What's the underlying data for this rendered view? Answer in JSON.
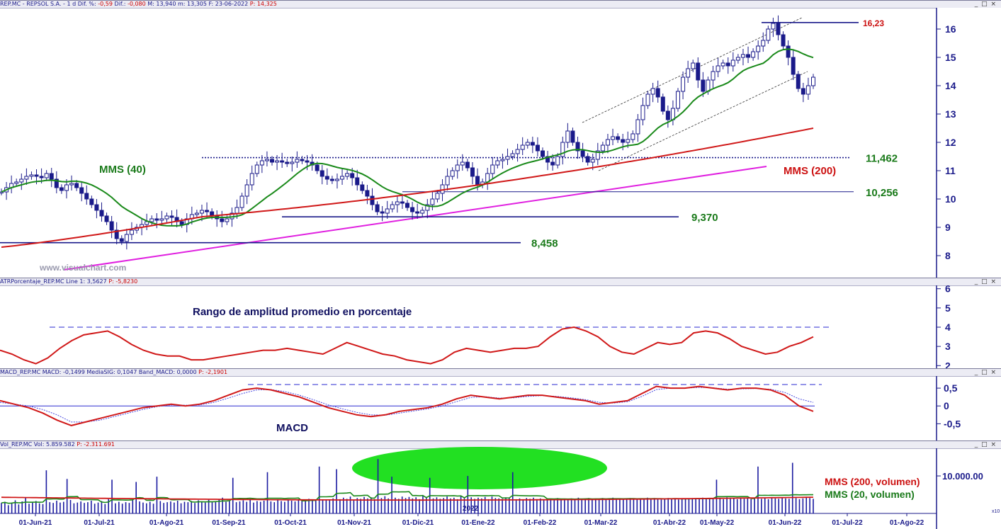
{
  "panels": {
    "price_header": {
      "prefix": "REP.MC - REPSOL  S.A. - 1 d  Dif. %: ",
      "dif_pct": "-0,59",
      "mid1": "  Dif.: ",
      "dif": "-0,080",
      "mid2": "  M: 13,940  m: 13,305  F: 23-06-2022  ",
      "p": "P: 14,325"
    },
    "atr_header": {
      "prefix": "ATRPorcentaje_REP.MC  Line 1: 3,5627  ",
      "p": "P: -5,8230"
    },
    "macd_header": {
      "prefix": "MACD_REP.MC  MACD: -0,1499  MediaSIG: 0,1047  Band_MACD: 0,0000  ",
      "p": "P: -2,1901"
    },
    "vol_header": {
      "prefix": "Vol_REP.MC  Vol: 5.859.582  ",
      "p": "P: -2.311.691"
    },
    "window_buttons": "_ □ ×"
  },
  "annotations": {
    "mms40": "MMS (40)",
    "mms200": "MMS (200)",
    "atr_title": "Rango de amplitud promedio en porcentaje",
    "macd_title": "MACD",
    "vol_mms200": "MMS (200, volumen)",
    "vol_mms20": "MMS (20, volumen)",
    "watermark": "www.visualchart.com",
    "year_label": "2022",
    "vol_axis_corner": "x10"
  },
  "chart_data": [
    {
      "type": "candlestick",
      "name_note": "price",
      "x_ticks": [
        "01-Jun-21",
        "01-Jul-21",
        "01-Ago-21",
        "01-Sep-21",
        "01-Oct-21",
        "01-Nov-21",
        "01-Dic-21",
        "01-Ene-22",
        "01-Feb-22",
        "01-Mar-22",
        "01-Abr-22",
        "01-May-22",
        "01-Jun-22",
        "01-Jul-22",
        "01-Ago-22"
      ],
      "ylim": [
        7.3,
        16.7
      ],
      "y_ticks": [
        8,
        9,
        10,
        11,
        12,
        13,
        14,
        15,
        16
      ],
      "levels": [
        {
          "value": 16.23,
          "label": "16,23",
          "color": "#cc1111"
        },
        {
          "value": 11.462,
          "label": "11,462",
          "color": "#1a7a1a"
        },
        {
          "value": 10.256,
          "label": "10,256",
          "color": "#1a7a1a"
        },
        {
          "value": 9.37,
          "label": "9,370",
          "color": "#1a7a1a"
        },
        {
          "value": 8.458,
          "label": "8,458",
          "color": "#1a7a1a"
        }
      ],
      "closes": [
        10.25,
        10.4,
        10.55,
        10.6,
        10.7,
        10.8,
        10.85,
        10.8,
        10.75,
        10.9,
        10.7,
        10.4,
        10.3,
        10.5,
        10.55,
        10.4,
        10.2,
        10.0,
        9.8,
        9.6,
        9.4,
        9.2,
        8.9,
        8.6,
        8.5,
        8.75,
        8.9,
        9.0,
        9.1,
        9.2,
        9.3,
        9.25,
        9.3,
        9.4,
        9.35,
        9.2,
        9.1,
        9.3,
        9.45,
        9.5,
        9.6,
        9.55,
        9.4,
        9.3,
        9.2,
        9.3,
        9.5,
        9.7,
        10.1,
        10.5,
        10.9,
        11.2,
        11.35,
        11.4,
        11.3,
        11.35,
        11.3,
        11.25,
        11.3,
        11.4,
        11.35,
        11.3,
        11.2,
        11.0,
        10.8,
        10.7,
        10.65,
        10.7,
        10.8,
        10.9,
        10.75,
        10.5,
        10.3,
        10.1,
        9.8,
        9.55,
        9.5,
        9.65,
        9.8,
        9.9,
        9.85,
        9.7,
        9.55,
        9.5,
        9.6,
        9.8,
        10.0,
        10.2,
        10.5,
        10.8,
        11.0,
        11.2,
        11.3,
        11.1,
        10.8,
        10.5,
        10.6,
        10.9,
        11.2,
        11.35,
        11.4,
        11.5,
        11.6,
        11.75,
        11.9,
        12.0,
        11.9,
        11.7,
        11.5,
        11.3,
        11.2,
        11.5,
        12.0,
        12.4,
        12.0,
        11.7,
        11.5,
        11.3,
        11.4,
        11.7,
        11.9,
        12.1,
        12.2,
        12.1,
        12.0,
        12.1,
        12.3,
        12.8,
        13.3,
        13.7,
        13.9,
        13.6,
        13.1,
        12.8,
        13.2,
        13.8,
        14.3,
        14.6,
        14.8,
        14.2,
        13.8,
        14.2,
        14.5,
        14.7,
        14.8,
        14.7,
        14.9,
        15.0,
        15.1,
        15.0,
        15.2,
        15.4,
        15.6,
        16.0,
        16.2,
        15.8,
        15.4,
        15.0,
        14.4,
        13.9,
        13.7,
        14.0,
        14.3
      ]
    },
    {
      "type": "line",
      "name_note": "atr_pct",
      "ylim": [
        1.9,
        6.1
      ],
      "y_ticks": [
        2,
        3,
        4,
        5,
        6
      ],
      "reference": 4.0,
      "values": [
        2.8,
        2.6,
        2.3,
        2.1,
        2.4,
        2.9,
        3.3,
        3.6,
        3.7,
        3.8,
        3.5,
        3.1,
        2.8,
        2.6,
        2.5,
        2.5,
        2.3,
        2.3,
        2.4,
        2.5,
        2.6,
        2.7,
        2.8,
        2.8,
        2.9,
        2.8,
        2.7,
        2.6,
        2.9,
        3.2,
        3.0,
        2.8,
        2.6,
        2.5,
        2.3,
        2.2,
        2.1,
        2.3,
        2.7,
        2.9,
        2.8,
        2.7,
        2.8,
        2.9,
        2.9,
        3.0,
        3.5,
        3.9,
        4.0,
        3.8,
        3.5,
        3.0,
        2.7,
        2.6,
        2.9,
        3.2,
        3.1,
        3.2,
        3.7,
        3.8,
        3.7,
        3.4,
        3.0,
        2.8,
        2.6,
        2.7,
        3.0,
        3.2,
        3.5
      ]
    },
    {
      "type": "line",
      "name_note": "macd",
      "ylim": [
        -0.95,
        0.8
      ],
      "y_ticks": [
        -0.5,
        0,
        0.5
      ],
      "y_tick_labels": [
        "-0,5",
        "0",
        "0,5"
      ],
      "reference": 0.6,
      "macd": [
        0.15,
        0.05,
        -0.05,
        -0.2,
        -0.4,
        -0.55,
        -0.45,
        -0.35,
        -0.25,
        -0.15,
        -0.05,
        0.0,
        0.05,
        0.0,
        0.05,
        0.15,
        0.3,
        0.45,
        0.5,
        0.45,
        0.35,
        0.25,
        0.1,
        -0.05,
        -0.15,
        -0.25,
        -0.3,
        -0.25,
        -0.15,
        -0.1,
        -0.05,
        0.05,
        0.2,
        0.3,
        0.25,
        0.2,
        0.25,
        0.3,
        0.3,
        0.25,
        0.2,
        0.15,
        0.05,
        0.1,
        0.15,
        0.35,
        0.55,
        0.5,
        0.5,
        0.55,
        0.5,
        0.45,
        0.5,
        0.5,
        0.45,
        0.3,
        0.0,
        -0.15
      ],
      "signal": [
        0.1,
        0.05,
        0.0,
        -0.1,
        -0.25,
        -0.45,
        -0.45,
        -0.4,
        -0.3,
        -0.2,
        -0.1,
        -0.02,
        0.03,
        0.02,
        0.03,
        0.1,
        0.22,
        0.35,
        0.45,
        0.46,
        0.4,
        0.3,
        0.17,
        0.03,
        -0.08,
        -0.18,
        -0.25,
        -0.26,
        -0.2,
        -0.14,
        -0.08,
        0.0,
        0.12,
        0.24,
        0.26,
        0.22,
        0.23,
        0.27,
        0.29,
        0.27,
        0.23,
        0.18,
        0.1,
        0.08,
        0.12,
        0.27,
        0.46,
        0.5,
        0.5,
        0.52,
        0.51,
        0.47,
        0.48,
        0.49,
        0.47,
        0.38,
        0.2,
        0.1
      ]
    },
    {
      "type": "bar",
      "name_note": "volume",
      "y_ticks": [
        10000000
      ],
      "y_tick_labels": [
        "10.000.00"
      ],
      "ylim": [
        0,
        17000000
      ],
      "values": [
        2.8,
        3.1,
        2.2,
        2.9,
        3.5,
        2.4,
        3.2,
        4.1,
        2.6,
        3.0,
        3.3,
        2.7,
        2.5,
        11.5,
        3.0,
        2.8,
        3.4,
        2.9,
        3.1,
        9.2,
        3.6,
        2.7,
        2.9,
        3.2,
        2.8,
        3.0,
        3.4,
        2.6,
        2.9,
        3.3,
        2.5,
        3.8,
        9.0,
        2.7,
        3.1,
        2.6,
        3.0,
        2.8,
        3.5,
        8.4,
        3.2,
        2.9,
        2.7,
        3.1,
        2.6,
        9.8,
        3.3,
        2.8,
        3.0,
        3.2,
        2.9,
        3.4,
        2.7,
        3.1,
        3.0,
        3.3,
        2.8,
        3.5,
        3.1,
        2.9,
        3.6,
        3.0,
        3.2,
        3.8,
        4.2,
        3.1,
        3.4,
        9.5,
        3.0,
        3.2,
        3.5,
        3.1,
        3.9,
        2.9,
        3.3,
        3.1,
        3.4,
        11.0,
        3.2,
        3.0,
        3.5,
        3.3,
        3.1,
        3.6,
        3.4,
        3.2,
        3.8,
        3.5,
        3.3,
        3.9,
        3.6,
        3.4,
        12.5,
        3.7,
        3.5,
        3.6,
        4.0,
        11.8,
        3.8,
        4.2,
        3.9,
        4.5,
        3.7,
        4.1,
        3.9,
        4.4,
        4.0,
        4.3,
        3.8,
        14.5,
        4.1,
        4.6,
        4.0,
        9.8,
        4.2,
        3.9,
        4.5,
        4.1,
        4.4,
        4.0,
        4.3,
        3.8,
        4.7,
        4.2,
        9.5,
        4.0,
        4.3,
        3.9,
        4.1,
        4.5,
        4.0,
        4.2,
        3.8,
        4.6,
        4.1,
        10.0,
        4.3,
        3.9,
        4.2,
        4.0,
        4.4,
        3.8,
        4.5,
        4.1,
        4.0,
        3.9,
        4.3,
        4.2,
        11.0,
        3.8,
        4.0,
        3.7,
        4.1,
        3.9,
        4.2,
        3.8,
        4.0,
        3.6,
        3.9,
        3.7,
        3.8,
        4.1,
        3.7,
        3.9,
        3.8,
        4.0,
        3.7,
        4.2,
        3.8,
        3.9,
        4.1,
        3.7,
        3.9,
        3.8,
        4.1,
        3.7,
        4.0,
        4.2,
        3.8,
        3.9,
        4.0,
        3.8,
        4.1,
        3.9,
        3.7,
        3.8,
        4.0,
        4.2,
        3.9,
        4.1,
        3.8,
        3.7,
        3.9,
        4.1,
        3.8,
        4.0,
        3.7,
        3.9,
        4.0,
        3.9,
        4.1,
        3.8,
        4.0,
        4.2,
        3.9,
        3.8,
        4.1,
        9.0,
        4.0,
        3.8,
        4.3,
        3.9,
        4.0,
        3.8,
        4.2,
        3.9,
        4.1,
        3.8,
        4.0,
        12.5,
        3.9,
        4.1,
        3.8,
        4.2,
        4.0,
        3.9,
        4.3,
        4.0,
        3.9,
        13.5,
        4.1,
        3.8,
        4.0,
        4.2,
        4.1,
        3.9
      ]
    }
  ]
}
